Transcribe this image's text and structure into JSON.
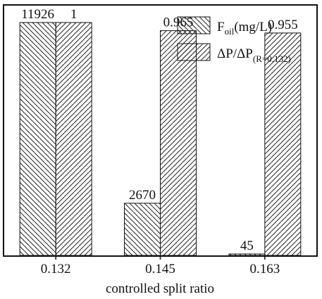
{
  "chart_data": {
    "type": "bar",
    "categories": [
      "0.132",
      "0.145",
      "0.163"
    ],
    "series": [
      {
        "name": "F_oil(mg/L)",
        "legend_main": "F",
        "legend_sub": "oil",
        "legend_tail": "(mg/L)",
        "pattern": "backslash-hatch",
        "values": [
          11926,
          2670,
          45
        ],
        "labels": [
          "11926",
          "2670",
          "45"
        ]
      },
      {
        "name": "ΔP/ΔP(R=0.132)",
        "legend_main": "ΔP/ΔP",
        "legend_sub": "(R=0.132)",
        "pattern": "slash-hatch",
        "values": [
          1,
          0.965,
          0.955
        ],
        "labels": [
          "1",
          "0.965",
          "0.955"
        ]
      }
    ],
    "xlabel": "controlled split ratio",
    "ylabel": "",
    "y_ticks_shown": false,
    "legend_position": "top-right",
    "grid": false,
    "colors": {
      "frame": "#111111",
      "bar_fill": "#ffffff",
      "hatch": "#222222"
    }
  }
}
